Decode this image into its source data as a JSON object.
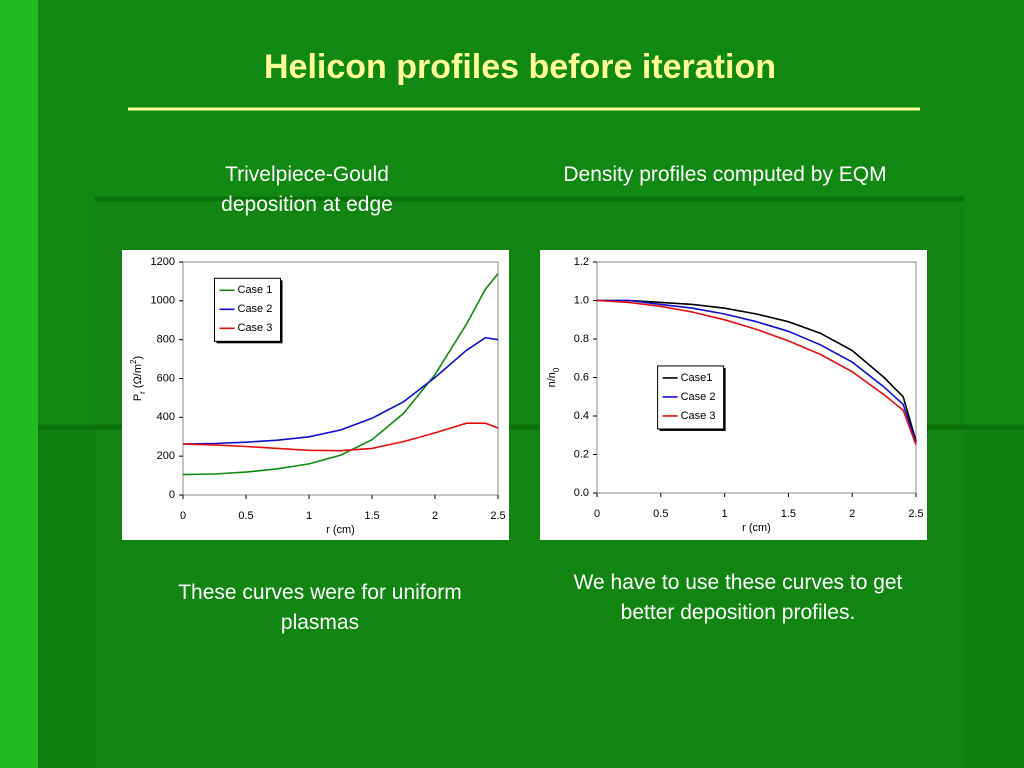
{
  "title": "Helicon profiles before iteration",
  "captions": {
    "left_top": "Trivelpiece-Gould deposition at edge",
    "right_top": "Density profiles computed by EQM",
    "left_bottom": "These curves were for uniform plasmas",
    "right_bottom": "We have to use these curves to get better deposition profiles."
  },
  "chart_data": [
    {
      "type": "line",
      "x": [
        0,
        0.25,
        0.5,
        0.75,
        1,
        1.25,
        1.5,
        1.75,
        2,
        2.25,
        2.4,
        2.5
      ],
      "xlim": [
        0,
        2.5
      ],
      "xticks": [
        0,
        0.5,
        1,
        1.5,
        2,
        2.5
      ],
      "ylim": [
        0,
        1200
      ],
      "yticks": [
        0,
        200,
        400,
        600,
        800,
        1000,
        1200
      ],
      "xlabel": "r (cm)",
      "ylabel": [
        {
          "text": "P"
        },
        {
          "text": "r",
          "shift": "sub"
        },
        {
          "text": " (Ω/m"
        },
        {
          "text": "2",
          "shift": "super"
        },
        {
          "text": ")"
        }
      ],
      "legend": "upper left",
      "series": [
        {
          "name": "Case 1",
          "color": "#138a13",
          "values": [
            105,
            108,
            118,
            135,
            160,
            205,
            285,
            420,
            620,
            880,
            1060,
            1140
          ]
        },
        {
          "name": "Case 2",
          "color": "#1010d0",
          "values": [
            262,
            265,
            272,
            282,
            300,
            335,
            395,
            480,
            605,
            745,
            810,
            800
          ]
        },
        {
          "name": "Case 3",
          "color": "#e01010",
          "values": [
            262,
            258,
            250,
            240,
            230,
            228,
            240,
            275,
            320,
            370,
            370,
            345
          ]
        }
      ]
    },
    {
      "type": "line",
      "x": [
        0,
        0.25,
        0.5,
        0.75,
        1,
        1.25,
        1.5,
        1.75,
        2,
        2.25,
        2.4,
        2.5
      ],
      "xlim": [
        0,
        2.5
      ],
      "xticks": [
        0,
        0.5,
        1,
        1.5,
        2,
        2.5
      ],
      "ylim": [
        0,
        1.2
      ],
      "yticks": [
        {
          "value": 0,
          "label": "0.0"
        },
        0.2,
        0.4,
        0.6,
        0.8,
        {
          "value": 1,
          "label": "1.0"
        },
        1.2
      ],
      "xlabel": "r (cm)",
      "ylabel": [
        {
          "text": "n/n"
        },
        {
          "text": "0",
          "shift": "sub"
        }
      ],
      "legend": "center left",
      "series": [
        {
          "name": "Case1",
          "color": "#000000",
          "values": [
            1.0,
            1.0,
            0.99,
            0.98,
            0.96,
            0.93,
            0.89,
            0.83,
            0.74,
            0.6,
            0.5,
            0.27
          ]
        },
        {
          "name": "Case 2",
          "color": "#1010d0",
          "values": [
            1.0,
            1.0,
            0.98,
            0.96,
            0.93,
            0.89,
            0.84,
            0.77,
            0.68,
            0.55,
            0.46,
            0.26
          ]
        },
        {
          "name": "Case 3",
          "color": "#e01010",
          "values": [
            1.0,
            0.99,
            0.97,
            0.94,
            0.9,
            0.85,
            0.79,
            0.72,
            0.63,
            0.51,
            0.43,
            0.25
          ]
        }
      ]
    }
  ]
}
